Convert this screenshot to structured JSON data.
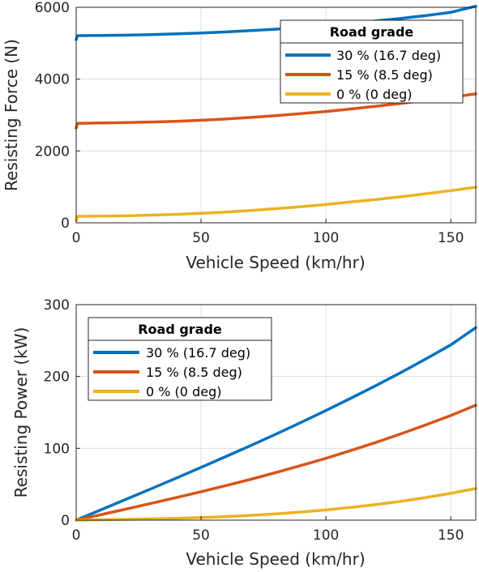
{
  "chart_data": [
    {
      "type": "line",
      "xlabel": "Vehicle Speed (km/hr)",
      "ylabel": "Resisting Force (N)",
      "xlim": [
        0,
        160
      ],
      "ylim": [
        0,
        6000
      ],
      "xticks": [
        0,
        50,
        100,
        150
      ],
      "yticks": [
        0,
        2000,
        4000,
        6000
      ],
      "grid": true,
      "legend": {
        "title": "Road grade",
        "placement": "top-right"
      },
      "series": [
        {
          "name": "30 % (16.7 deg)",
          "color": "#0072BD",
          "x": [
            0,
            0.5,
            10,
            20,
            30,
            40,
            50,
            60,
            70,
            80,
            90,
            100,
            110,
            120,
            130,
            140,
            150,
            160
          ],
          "y": [
            5100,
            5210,
            5215,
            5225,
            5240,
            5260,
            5285,
            5315,
            5350,
            5390,
            5440,
            5495,
            5555,
            5620,
            5690,
            5770,
            5860,
            6030
          ]
        },
        {
          "name": "15 % (8.5 deg)",
          "color": "#D95319",
          "x": [
            0,
            0.5,
            10,
            20,
            30,
            40,
            50,
            60,
            70,
            80,
            90,
            100,
            110,
            120,
            130,
            140,
            150,
            160
          ],
          "y": [
            2640,
            2770,
            2780,
            2790,
            2805,
            2825,
            2855,
            2890,
            2935,
            2985,
            3040,
            3100,
            3170,
            3245,
            3325,
            3410,
            3495,
            3590
          ]
        },
        {
          "name": "0 % (0 deg)",
          "color": "#EDB120",
          "x": [
            0,
            0.5,
            10,
            20,
            30,
            40,
            50,
            60,
            70,
            80,
            90,
            100,
            110,
            120,
            130,
            140,
            150,
            160
          ],
          "y": [
            60,
            180,
            185,
            195,
            215,
            235,
            265,
            300,
            345,
            395,
            450,
            510,
            580,
            650,
            725,
            810,
            895,
            990
          ]
        }
      ]
    },
    {
      "type": "line",
      "xlabel": "Vehicle Speed (km/hr)",
      "ylabel": "Resisting Power (kW)",
      "xlim": [
        0,
        160
      ],
      "ylim": [
        0,
        300
      ],
      "xticks": [
        0,
        50,
        100,
        150
      ],
      "yticks": [
        0,
        100,
        200,
        300
      ],
      "grid": true,
      "legend": {
        "title": "Road grade",
        "placement": "top-left"
      },
      "series": [
        {
          "name": "30 % (16.7 deg)",
          "color": "#0072BD",
          "x": [
            0,
            10,
            20,
            30,
            40,
            50,
            60,
            70,
            80,
            90,
            100,
            110,
            120,
            130,
            140,
            150,
            160
          ],
          "y": [
            0,
            14.5,
            29,
            43.7,
            58.4,
            73.4,
            88.6,
            104,
            119.8,
            136,
            152.6,
            169.7,
            187.3,
            205.5,
            224.4,
            244,
            268
          ]
        },
        {
          "name": "15 % (8.5 deg)",
          "color": "#D95319",
          "x": [
            0,
            10,
            20,
            30,
            40,
            50,
            60,
            70,
            80,
            90,
            100,
            110,
            120,
            130,
            140,
            150,
            160
          ],
          "y": [
            0,
            7.7,
            15.5,
            23.4,
            31.4,
            39.6,
            48.2,
            57,
            66.3,
            76,
            86.1,
            96.9,
            108.2,
            120.1,
            132.6,
            145.6,
            160
          ]
        },
        {
          "name": "0 % (0 deg)",
          "color": "#EDB120",
          "x": [
            0,
            10,
            20,
            30,
            40,
            50,
            60,
            70,
            80,
            90,
            100,
            110,
            120,
            130,
            140,
            150,
            160
          ],
          "y": [
            0,
            0.5,
            1.1,
            1.8,
            2.6,
            3.7,
            5,
            6.7,
            8.8,
            11.3,
            14.2,
            17.7,
            21.7,
            26.2,
            31.5,
            37.3,
            44
          ]
        }
      ]
    }
  ]
}
